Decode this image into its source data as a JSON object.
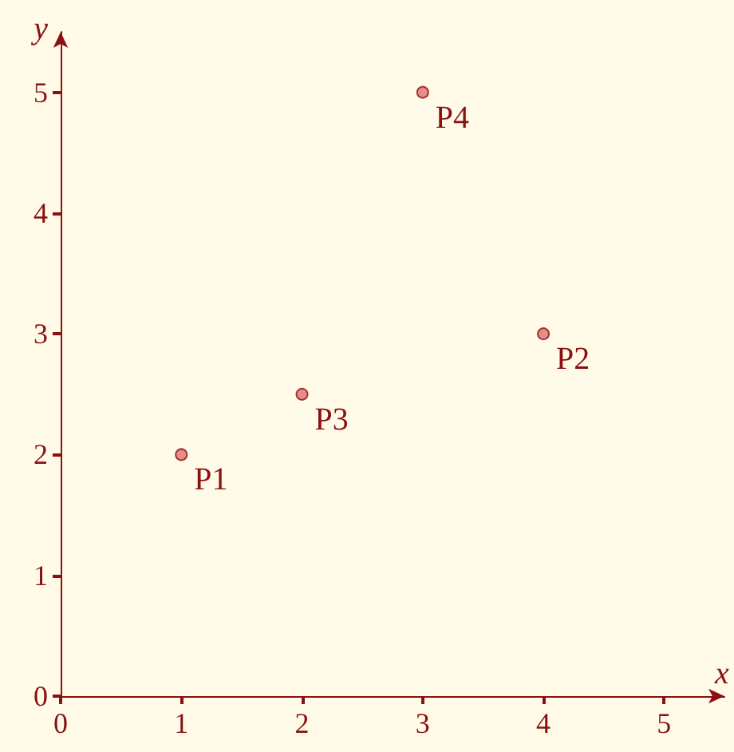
{
  "chart_data": {
    "type": "scatter",
    "xlabel": "x",
    "ylabel": "y",
    "x": [
      1,
      4,
      2,
      3
    ],
    "series": [
      {
        "color": "#e07070",
        "values": [
          2,
          3,
          2.5,
          5
        ]
      }
    ],
    "annotations": [
      {
        "text": "P1",
        "x": 1,
        "y": 2
      },
      {
        "text": "P2",
        "x": 4,
        "y": 3
      },
      {
        "text": "P3",
        "x": 2,
        "y": 2.5
      },
      {
        "text": "P4",
        "x": 3,
        "y": 5
      }
    ],
    "xlim": [
      0,
      5.5
    ],
    "ylim": [
      0,
      5.5
    ],
    "xticks": [
      0,
      1,
      2,
      3,
      4,
      5
    ],
    "yticks": [
      0,
      1,
      2,
      3,
      4,
      5
    ],
    "grid": false,
    "marker": "circle"
  }
}
